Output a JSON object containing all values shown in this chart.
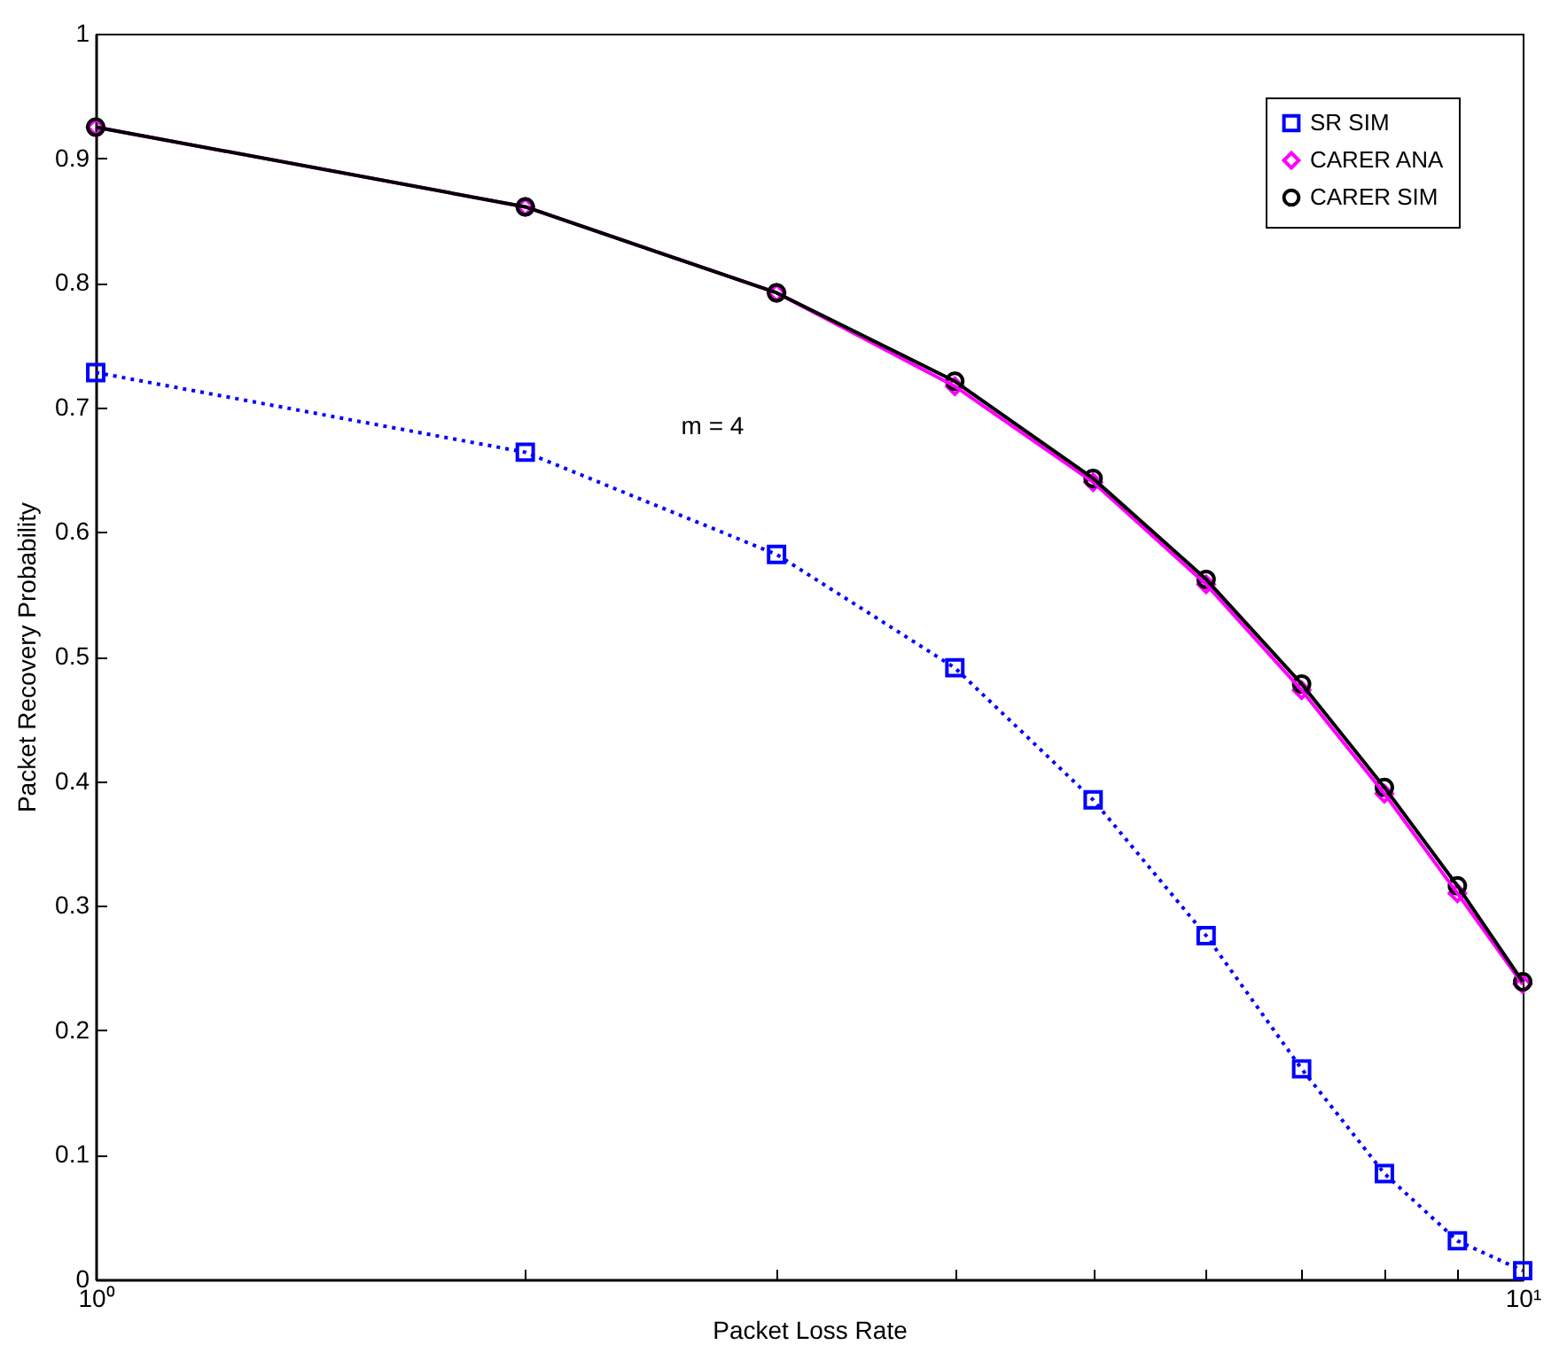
{
  "chart_data": {
    "type": "line",
    "xlabel": "Packet Loss Rate",
    "ylabel": "Packet Recovery Probability",
    "x": [
      1,
      2,
      3,
      4,
      5,
      6,
      7,
      8,
      9,
      10
    ],
    "log": "x",
    "xlim": [
      1,
      10
    ],
    "xticks": [
      {
        "value": 1,
        "label": "10⁰"
      },
      {
        "value": 2,
        "label": null
      },
      {
        "value": 3,
        "label": null
      },
      {
        "value": 4,
        "label": null
      },
      {
        "value": 5,
        "label": null
      },
      {
        "value": 6,
        "label": null
      },
      {
        "value": 7,
        "label": null
      },
      {
        "value": 8,
        "label": null
      },
      {
        "value": 9,
        "label": null
      },
      {
        "value": 10,
        "label": "10¹"
      }
    ],
    "ylim": [
      0,
      1
    ],
    "yticks": [
      0,
      0.1,
      0.2,
      0.3,
      0.4,
      0.5,
      0.6,
      0.7,
      0.8,
      0.9,
      1
    ],
    "grid": false,
    "legend": "top right",
    "annotations": [
      "m = 4"
    ],
    "series": [
      {
        "name": "SR SIM",
        "color": "#0000ff",
        "marker": "square",
        "line_style": "dotted",
        "values": [
          0.728,
          0.664,
          0.582,
          0.491,
          0.385,
          0.276,
          0.169,
          0.085,
          0.031,
          0.007
        ]
      },
      {
        "name": "CARER ANA",
        "color": "#ff00ff",
        "marker": "diamond",
        "line_style": "solid",
        "values": [
          0.925,
          0.861,
          0.792,
          0.717,
          0.64,
          0.558,
          0.473,
          0.39,
          0.31,
          0.237
        ]
      },
      {
        "name": "CARER SIM",
        "color": "#000000",
        "marker": "circle",
        "line_style": "solid",
        "values": [
          0.925,
          0.861,
          0.792,
          0.721,
          0.643,
          0.562,
          0.478,
          0.395,
          0.316,
          0.239
        ]
      }
    ]
  }
}
